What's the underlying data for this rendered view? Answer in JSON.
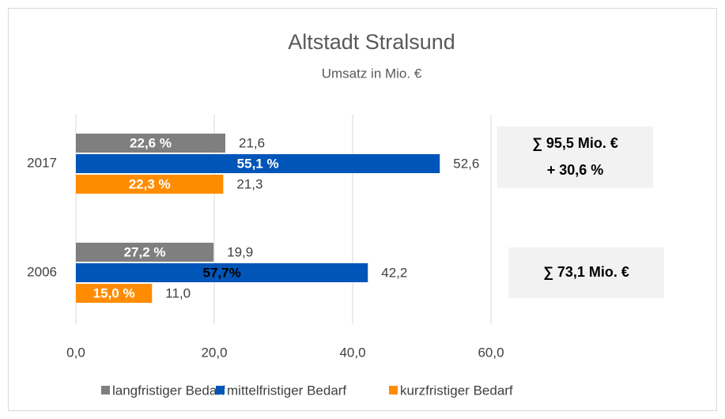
{
  "chart_data": {
    "type": "barh",
    "title": "Altstadt Stralsund",
    "subtitle": "Umsatz in Mio. €",
    "categories": [
      "2017",
      "2006"
    ],
    "series": [
      {
        "name": "langfristiger Bedarf",
        "color": "#7f7f7f",
        "values": [
          21.6,
          19.9
        ],
        "value_labels": [
          "21,6",
          "19,9"
        ],
        "share_labels": [
          "22,6 %",
          "27,2 %"
        ],
        "share_label_colors": [
          "#ffffff",
          "#ffffff"
        ]
      },
      {
        "name": "mittelfristiger Bedarf",
        "color": "#0055b8",
        "values": [
          52.6,
          42.2
        ],
        "value_labels": [
          "52,6",
          "42,2"
        ],
        "share_labels": [
          "55,1 %",
          "57,7%"
        ],
        "share_label_colors": [
          "#ffffff",
          "#000000"
        ]
      },
      {
        "name": "kurzfristiger Bedarf",
        "color": "#ff8c00",
        "values": [
          21.3,
          11.0
        ],
        "value_labels": [
          "21,3",
          "11,0"
        ],
        "share_labels": [
          "22,3 %",
          "15,0 %"
        ],
        "share_label_colors": [
          "#ffffff",
          "#ffffff"
        ]
      }
    ],
    "xlim": [
      0,
      60
    ],
    "xticks": [
      {
        "value": 0,
        "label": "0,0"
      },
      {
        "value": 20,
        "label": "20,0"
      },
      {
        "value": 40,
        "label": "40,0"
      },
      {
        "value": 60,
        "label": "60,0"
      }
    ],
    "grid": true,
    "legend": "bottom",
    "annotations": [
      [
        "∑ 95,5 Mio. €",
        "+ 30,6 %"
      ],
      [
        "∑ 73,1 Mio. €"
      ]
    ]
  }
}
